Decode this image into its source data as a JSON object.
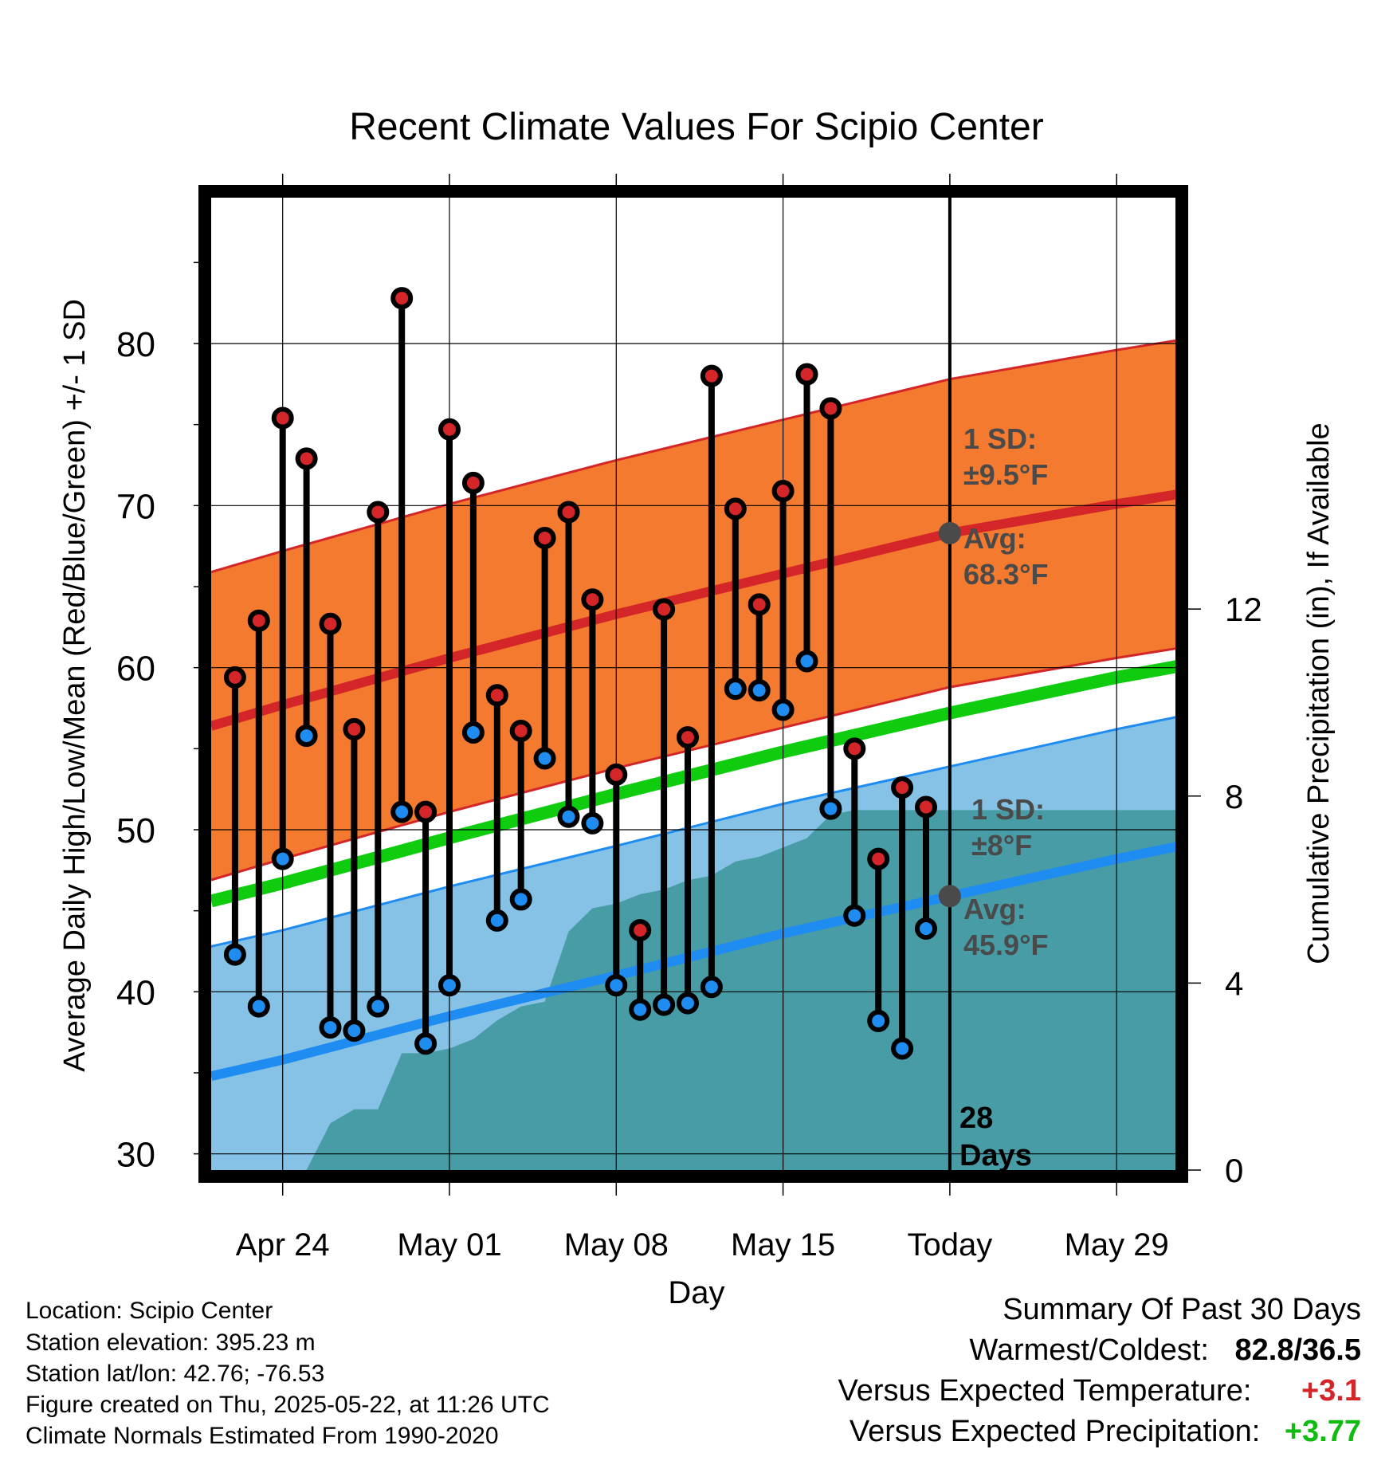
{
  "chart_data": {
    "type": "line",
    "title": "Recent Climate Values For Scipio Center",
    "xlabel": "Day",
    "ylabel": "Average Daily High/Low/Mean (Red/Blue/Green) +/- 1 SD",
    "y2label": "Cumulative Precipitation (in), If Available",
    "x_tick_labels": [
      "Apr 24",
      "May 01",
      "May 08",
      "May 15",
      "Today",
      "May 29"
    ],
    "y_ticks": [
      30,
      40,
      50,
      60,
      70,
      80
    ],
    "y2_ticks": [
      0,
      4,
      8,
      12
    ],
    "ylim": [
      29,
      89
    ],
    "y2lim": [
      0,
      20.8
    ],
    "today_label": "28",
    "today_label2": "Days",
    "high_sd_label": "1 SD:",
    "high_sd_value": "±9.5°F",
    "high_avg_label": "Avg:",
    "high_avg_value": "68.3°F",
    "low_sd_label": "1 SD:",
    "low_sd_value": "±8°F",
    "low_avg_label": "Avg:",
    "low_avg_value": "45.9°F",
    "normals": {
      "x": [
        "Apr 21",
        "Apr 24",
        "May 01",
        "May 08",
        "May 15",
        "May 22",
        "May 29",
        "Jun 01"
      ],
      "avg_high": [
        56.4,
        57.7,
        60.6,
        63.3,
        65.8,
        68.3,
        70.1,
        70.8
      ],
      "avg_low": [
        34.8,
        35.8,
        38.5,
        41.0,
        43.6,
        45.9,
        48.2,
        49.1
      ],
      "avg_mean": [
        45.6,
        46.7,
        49.5,
        52.2,
        54.8,
        57.2,
        59.4,
        60.2
      ],
      "high_sd": 9.5,
      "low_sd": 8
    },
    "daily": {
      "dates": [
        "Apr 22",
        "Apr 23",
        "Apr 24",
        "Apr 25",
        "Apr 26",
        "Apr 27",
        "Apr 28",
        "Apr 29",
        "Apr 30",
        "May 01",
        "May 02",
        "May 03",
        "May 04",
        "May 05",
        "May 06",
        "May 07",
        "May 08",
        "May 09",
        "May 10",
        "May 11",
        "May 12",
        "May 13",
        "May 14",
        "May 15",
        "May 16",
        "May 17",
        "May 18",
        "May 19",
        "May 20",
        "May 21"
      ],
      "high": [
        59.4,
        62.9,
        75.4,
        72.9,
        62.7,
        56.2,
        69.6,
        82.8,
        51.1,
        74.7,
        71.4,
        58.3,
        56.1,
        68.0,
        69.6,
        64.2,
        53.4,
        43.8,
        63.6,
        55.7,
        78.0,
        69.8,
        63.9,
        70.9,
        78.1,
        76.0,
        55.0,
        48.2,
        52.6,
        51.4
      ],
      "low": [
        42.3,
        39.1,
        48.2,
        55.8,
        37.8,
        37.6,
        39.1,
        51.1,
        36.8,
        40.4,
        56.0,
        44.4,
        45.7,
        54.4,
        50.8,
        50.4,
        40.4,
        38.9,
        39.2,
        39.3,
        40.3,
        58.7,
        58.6,
        57.4,
        60.4,
        51.3,
        44.7,
        38.2,
        36.5,
        43.9
      ]
    },
    "precip": {
      "dates": [
        "Apr 23",
        "Apr 24",
        "Apr 25",
        "Apr 26",
        "Apr 27",
        "Apr 28",
        "Apr 29",
        "Apr 30",
        "May 01",
        "May 02",
        "May 03",
        "May 04",
        "May 05",
        "May 06",
        "May 07",
        "May 08",
        "May 09",
        "May 10",
        "May 11",
        "May 12",
        "May 13",
        "May 14",
        "May 15",
        "May 16",
        "May 17",
        "May 18",
        "May 19",
        "May 20",
        "May 21",
        "Jun 01"
      ],
      "cumulative": [
        0,
        0,
        0,
        1.0,
        1.3,
        1.3,
        2.5,
        2.5,
        2.6,
        2.8,
        3.2,
        3.5,
        3.6,
        5.1,
        5.6,
        5.7,
        5.9,
        6.0,
        6.2,
        6.3,
        6.6,
        6.7,
        6.9,
        7.1,
        7.6,
        7.7,
        7.7,
        7.7,
        7.7,
        7.7
      ]
    }
  },
  "footer": {
    "location": "Location: Scipio Center",
    "elevation": "Station elevation: 395.23 m",
    "latlon": "Station lat/lon: 42.76; -76.53",
    "created": "Figure created on Thu, 2025-05-22, at 11:26 UTC",
    "normals": "Climate Normals Estimated From 1990-2020"
  },
  "summary": {
    "heading": "Summary Of Past 30 Days",
    "warm_cold_label": "Warmest/Coldest:",
    "warm_cold_value": "82.8/36.5",
    "temp_label": "Versus Expected Temperature:",
    "temp_value": "+3.1",
    "precip_label": "Versus Expected Precipitation:",
    "precip_value": "+3.77"
  },
  "colors": {
    "high_band": "#f37a2e",
    "high_line": "#d42628",
    "low_band": "#86c1e6",
    "low_line": "#1e8cf0",
    "mean_line": "#0fcc0f",
    "precip_fill": "#489ca5",
    "high_dot": "#d42628",
    "low_dot": "#1e8cf0",
    "label_gray": "#4a4a4a",
    "temp_delta": "#d42628",
    "precip_delta": "#11bb11"
  }
}
